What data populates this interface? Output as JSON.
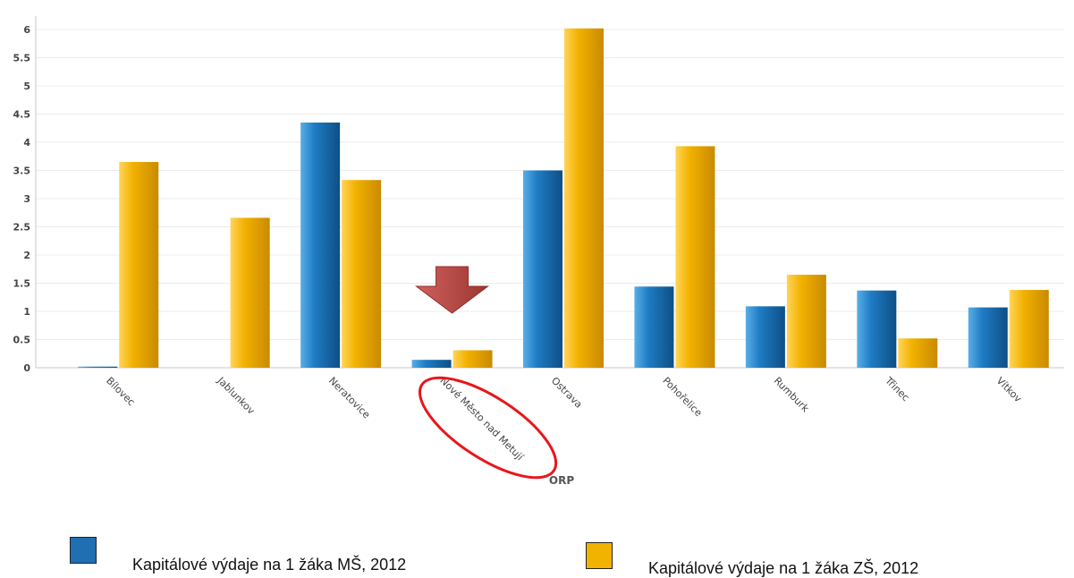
{
  "chart_data": {
    "type": "bar",
    "categories": [
      "Bílovec",
      "Jablunkov",
      "Neratovice",
      "Nové Město nad Metují",
      "Ostrava",
      "Pohořelice",
      "Rumburk",
      "Třinec",
      "Vítkov"
    ],
    "series": [
      {
        "name": "Kapitálové výdaje na 1 žáka MŠ, 2012",
        "color": "#1f6fb2",
        "values": [
          0.02,
          0.0,
          4.35,
          0.14,
          3.5,
          1.44,
          1.09,
          1.37,
          1.07
        ]
      },
      {
        "name": "Kapitálové výdaje na 1 žáka ZŠ, 2012",
        "color": "#f2b200",
        "values": [
          3.65,
          2.66,
          3.33,
          0.31,
          6.02,
          3.93,
          1.65,
          0.52,
          1.38
        ]
      }
    ],
    "xlabel": "ORP",
    "ylabel": "",
    "ylim": [
      0,
      6.2
    ],
    "yticks": [
      "0",
      "0.5",
      "1",
      "1.5",
      "2",
      "2.5",
      "3",
      "3.5",
      "4",
      "4.5",
      "5",
      "5.5",
      "6"
    ],
    "grid": true,
    "legend_position": "bottom",
    "highlighted_category": "Nové Město nad Metují",
    "annotation_colors": {
      "arrow": "#c0504d",
      "ellipse": "#e8161b"
    }
  }
}
